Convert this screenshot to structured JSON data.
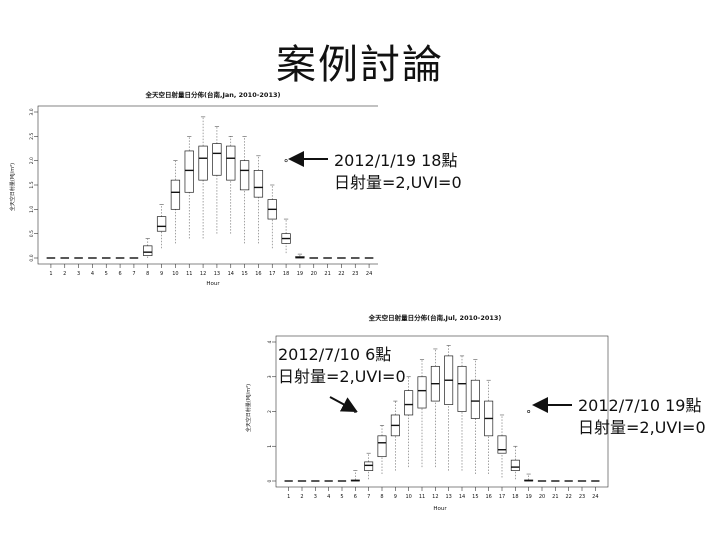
{
  "slide": {
    "title": "案例討論"
  },
  "chart_data": [
    {
      "type": "boxplot",
      "title": "全天空日射量日分佈(台南,Jan, 2010-2013)",
      "xlabel": "Hour",
      "ylabel": "全天空日射量(MJ/m²)",
      "ylim": [
        0,
        3.0
      ],
      "yticks": [
        "0.0",
        "0.5",
        "1.0",
        "1.5",
        "2.0",
        "2.5",
        "3.0"
      ],
      "categories": [
        "1",
        "2",
        "3",
        "4",
        "5",
        "6",
        "7",
        "8",
        "9",
        "10",
        "11",
        "12",
        "13",
        "14",
        "15",
        "16",
        "17",
        "18",
        "19",
        "20",
        "21",
        "22",
        "23",
        "24"
      ],
      "boxes": [
        {
          "q1": 0,
          "med": 0,
          "q3": 0,
          "lo": 0,
          "hi": 0
        },
        {
          "q1": 0,
          "med": 0,
          "q3": 0,
          "lo": 0,
          "hi": 0
        },
        {
          "q1": 0,
          "med": 0,
          "q3": 0,
          "lo": 0,
          "hi": 0
        },
        {
          "q1": 0,
          "med": 0,
          "q3": 0,
          "lo": 0,
          "hi": 0
        },
        {
          "q1": 0,
          "med": 0,
          "q3": 0,
          "lo": 0,
          "hi": 0
        },
        {
          "q1": 0,
          "med": 0,
          "q3": 0,
          "lo": 0,
          "hi": 0
        },
        {
          "q1": 0,
          "med": 0,
          "q3": 0,
          "lo": 0,
          "hi": 0
        },
        {
          "q1": 0.05,
          "med": 0.12,
          "q3": 0.25,
          "lo": 0,
          "hi": 0.4
        },
        {
          "q1": 0.55,
          "med": 0.65,
          "q3": 0.85,
          "lo": 0.2,
          "hi": 1.1
        },
        {
          "q1": 1.0,
          "med": 1.35,
          "q3": 1.6,
          "lo": 0.3,
          "hi": 2.0
        },
        {
          "q1": 1.35,
          "med": 1.8,
          "q3": 2.2,
          "lo": 0.4,
          "hi": 2.5
        },
        {
          "q1": 1.6,
          "med": 2.05,
          "q3": 2.3,
          "lo": 0.4,
          "hi": 2.9
        },
        {
          "q1": 1.7,
          "med": 2.15,
          "q3": 2.35,
          "lo": 0.5,
          "hi": 2.7
        },
        {
          "q1": 1.6,
          "med": 2.05,
          "q3": 2.3,
          "lo": 0.5,
          "hi": 2.5
        },
        {
          "q1": 1.4,
          "med": 1.8,
          "q3": 2.0,
          "lo": 0.3,
          "hi": 2.5
        },
        {
          "q1": 1.25,
          "med": 1.45,
          "q3": 1.8,
          "lo": 0.3,
          "hi": 2.1
        },
        {
          "q1": 0.8,
          "med": 1.0,
          "q3": 1.2,
          "lo": 0.2,
          "hi": 1.5
        },
        {
          "q1": 0.3,
          "med": 0.4,
          "q3": 0.5,
          "lo": 0.1,
          "hi": 0.8
        },
        {
          "q1": 0,
          "med": 0.01,
          "q3": 0.03,
          "lo": 0,
          "hi": 0.08
        },
        {
          "q1": 0,
          "med": 0,
          "q3": 0,
          "lo": 0,
          "hi": 0
        },
        {
          "q1": 0,
          "med": 0,
          "q3": 0,
          "lo": 0,
          "hi": 0
        },
        {
          "q1": 0,
          "med": 0,
          "q3": 0,
          "lo": 0,
          "hi": 0
        },
        {
          "q1": 0,
          "med": 0,
          "q3": 0,
          "lo": 0,
          "hi": 0
        },
        {
          "q1": 0,
          "med": 0,
          "q3": 0,
          "lo": 0,
          "hi": 0
        }
      ],
      "outlier": {
        "hour": 18,
        "value": 2.0
      },
      "annotation": [
        "2012/1/19 18點",
        "日射量=2,UVI=0"
      ]
    },
    {
      "type": "boxplot",
      "title": "全天空日射量日分佈(台南,Jul, 2010-2013)",
      "xlabel": "Hour",
      "ylabel": "全天空日射量(MJ/m²)",
      "ylim": [
        0,
        4
      ],
      "yticks": [
        "0",
        "1",
        "2",
        "3",
        "4"
      ],
      "categories": [
        "1",
        "2",
        "3",
        "4",
        "5",
        "6",
        "7",
        "8",
        "9",
        "10",
        "11",
        "12",
        "13",
        "14",
        "15",
        "16",
        "17",
        "18",
        "19",
        "20",
        "21",
        "22",
        "23",
        "24"
      ],
      "boxes": [
        {
          "q1": 0,
          "med": 0,
          "q3": 0,
          "lo": 0,
          "hi": 0
        },
        {
          "q1": 0,
          "med": 0,
          "q3": 0,
          "lo": 0,
          "hi": 0
        },
        {
          "q1": 0,
          "med": 0,
          "q3": 0,
          "lo": 0,
          "hi": 0
        },
        {
          "q1": 0,
          "med": 0,
          "q3": 0,
          "lo": 0,
          "hi": 0
        },
        {
          "q1": 0,
          "med": 0,
          "q3": 0,
          "lo": 0,
          "hi": 0
        },
        {
          "q1": 0,
          "med": 0.01,
          "q3": 0.03,
          "lo": 0,
          "hi": 0.3
        },
        {
          "q1": 0.3,
          "med": 0.45,
          "q3": 0.55,
          "lo": 0.05,
          "hi": 0.8
        },
        {
          "q1": 0.7,
          "med": 1.1,
          "q3": 1.3,
          "lo": 0.2,
          "hi": 1.6
        },
        {
          "q1": 1.3,
          "med": 1.6,
          "q3": 1.9,
          "lo": 0.3,
          "hi": 2.3
        },
        {
          "q1": 1.9,
          "med": 2.2,
          "q3": 2.6,
          "lo": 0.4,
          "hi": 3.0
        },
        {
          "q1": 2.1,
          "med": 2.6,
          "q3": 3.0,
          "lo": 0.4,
          "hi": 3.5
        },
        {
          "q1": 2.3,
          "med": 2.8,
          "q3": 3.3,
          "lo": 0.4,
          "hi": 3.8
        },
        {
          "q1": 2.2,
          "med": 2.9,
          "q3": 3.6,
          "lo": 0.3,
          "hi": 3.9
        },
        {
          "q1": 2.0,
          "med": 2.8,
          "q3": 3.3,
          "lo": 0.3,
          "hi": 3.6
        },
        {
          "q1": 1.8,
          "med": 2.3,
          "q3": 2.9,
          "lo": 0.2,
          "hi": 3.5
        },
        {
          "q1": 1.3,
          "med": 1.8,
          "q3": 2.3,
          "lo": 0.2,
          "hi": 2.9
        },
        {
          "q1": 0.8,
          "med": 0.9,
          "q3": 1.3,
          "lo": 0.1,
          "hi": 1.9
        },
        {
          "q1": 0.3,
          "med": 0.4,
          "q3": 0.6,
          "lo": 0.05,
          "hi": 1.0
        },
        {
          "q1": 0,
          "med": 0.01,
          "q3": 0.03,
          "lo": 0,
          "hi": 0.2
        },
        {
          "q1": 0,
          "med": 0,
          "q3": 0,
          "lo": 0,
          "hi": 0
        },
        {
          "q1": 0,
          "med": 0,
          "q3": 0,
          "lo": 0,
          "hi": 0
        },
        {
          "q1": 0,
          "med": 0,
          "q3": 0,
          "lo": 0,
          "hi": 0
        },
        {
          "q1": 0,
          "med": 0,
          "q3": 0,
          "lo": 0,
          "hi": 0
        },
        {
          "q1": 0,
          "med": 0,
          "q3": 0,
          "lo": 0,
          "hi": 0
        }
      ],
      "outliers": [
        {
          "hour": 6,
          "value": 2.0
        },
        {
          "hour": 19,
          "value": 2.0
        }
      ],
      "annotations": [
        [
          "2012/7/10 6點",
          "日射量=2,UVI=0"
        ],
        [
          "2012/7/10 19點",
          "日射量=2,UVI=0"
        ]
      ]
    }
  ]
}
